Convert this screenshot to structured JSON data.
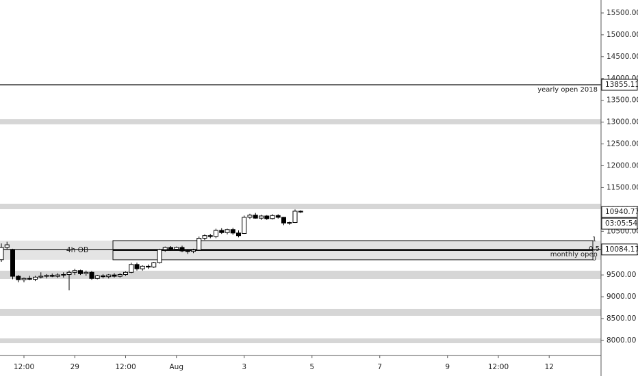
{
  "chart_data": {
    "type": "candlestick",
    "categories": [
      null,
      null,
      null,
      null,
      "12:00",
      null,
      null,
      null,
      null,
      null,
      null,
      null,
      null,
      "29",
      null,
      null,
      null,
      null,
      null,
      null,
      null,
      null,
      "12:00",
      null,
      null,
      null,
      null,
      null,
      null,
      null,
      null,
      "Aug",
      null,
      null,
      null,
      null,
      null,
      null,
      null,
      null,
      null,
      null,
      null,
      "3",
      null,
      null,
      null,
      null,
      null,
      null,
      null,
      null,
      null,
      null,
      null,
      "5",
      null,
      null,
      null,
      null,
      null,
      null,
      null,
      null,
      null,
      null,
      null,
      "7",
      null,
      null,
      null,
      null,
      null,
      null,
      null,
      null,
      null,
      null,
      null,
      "9",
      null,
      null,
      null,
      null,
      null,
      null,
      null,
      null,
      "12:00",
      null,
      null,
      null,
      null,
      null,
      null,
      null,
      null,
      "12",
      null,
      null,
      null,
      null,
      null,
      null,
      null
    ],
    "open": [
      9850,
      10130,
      10080,
      9470,
      9390,
      9420,
      9400,
      9450,
      9470,
      9490,
      9470,
      9500,
      9510,
      9560,
      9600,
      9530,
      9560,
      9420,
      9480,
      9460,
      9500,
      9470,
      9510,
      9560,
      9740,
      9640,
      9700,
      9680,
      9780,
      10080,
      10130,
      10090,
      10130,
      10050,
      10040,
      10070,
      10340,
      10400,
      10380,
      10520,
      10470,
      10540,
      10460,
      10450,
      10820,
      10870,
      10800,
      10850,
      10790,
      10860,
      10820,
      10690,
      10700,
      10960,
      null,
      null,
      null,
      null,
      null,
      null,
      null,
      null,
      null,
      null,
      null,
      null,
      null,
      null,
      null,
      null,
      null,
      null,
      null,
      null,
      null,
      null,
      null,
      null,
      null,
      null,
      null,
      null,
      null,
      null,
      null,
      null,
      null,
      null,
      null,
      null,
      null,
      null,
      null,
      null,
      null,
      null,
      null,
      null,
      null,
      null,
      null,
      null,
      null,
      null,
      null
    ],
    "high": [
      10220,
      10260,
      10100,
      9500,
      9440,
      9480,
      9480,
      9560,
      9520,
      9530,
      9540,
      9560,
      9600,
      9640,
      9620,
      9600,
      9590,
      9500,
      9520,
      9520,
      9540,
      9540,
      9580,
      9780,
      9780,
      9720,
      9740,
      9800,
      10100,
      10150,
      10160,
      10150,
      10170,
      10090,
      10100,
      10380,
      10430,
      10440,
      10560,
      10570,
      10560,
      10580,
      10520,
      10860,
      10900,
      10920,
      10880,
      10870,
      10890,
      10890,
      10830,
      10720,
      11000,
      10980,
      null,
      null,
      null,
      null,
      null,
      null,
      null,
      null,
      null,
      null,
      null,
      null,
      null,
      null,
      null,
      null,
      null,
      null,
      null,
      null,
      null,
      null,
      null,
      null,
      null,
      null,
      null,
      null,
      null,
      null,
      null,
      null,
      null,
      null,
      null,
      null,
      null,
      null,
      null,
      null,
      null,
      null,
      null,
      null,
      null,
      null,
      null,
      null,
      null,
      null,
      null
    ],
    "low": [
      9800,
      10080,
      9400,
      9330,
      9330,
      9380,
      9360,
      9420,
      9420,
      9450,
      9430,
      9440,
      9150,
      9500,
      9500,
      9480,
      9390,
      9400,
      9420,
      9420,
      9440,
      9440,
      9480,
      9540,
      9600,
      9600,
      9640,
      9660,
      9760,
      10030,
      10060,
      10070,
      10020,
      9980,
      10000,
      10050,
      10300,
      10340,
      10340,
      10440,
      10430,
      10420,
      10360,
      10440,
      10780,
      10790,
      10760,
      10760,
      10770,
      10790,
      10640,
      10650,
      10690,
      10920,
      null,
      null,
      null,
      null,
      null,
      null,
      null,
      null,
      null,
      null,
      null,
      null,
      null,
      null,
      null,
      null,
      null,
      null,
      null,
      null,
      null,
      null,
      null,
      null,
      null,
      null,
      null,
      null,
      null,
      null,
      null,
      null,
      null,
      null,
      null,
      null,
      null,
      null,
      null,
      null,
      null,
      null,
      null,
      null,
      null,
      null,
      null,
      null,
      null,
      null,
      null
    ],
    "close": [
      10130,
      10190,
      9470,
      9390,
      9420,
      9400,
      9450,
      9470,
      9490,
      9470,
      9500,
      9510,
      9560,
      9600,
      9530,
      9560,
      9420,
      9480,
      9460,
      9500,
      9470,
      9510,
      9560,
      9740,
      9640,
      9700,
      9680,
      9780,
      10080,
      10130,
      10090,
      10130,
      10050,
      10040,
      10070,
      10340,
      10400,
      10380,
      10520,
      10470,
      10540,
      10460,
      10400,
      10820,
      10870,
      10800,
      10850,
      10790,
      10860,
      10820,
      10690,
      10700,
      10960,
      10940.77,
      null,
      null,
      null,
      null,
      null,
      null,
      null,
      null,
      null,
      null,
      null,
      null,
      null,
      null,
      null,
      null,
      null,
      null,
      null,
      null,
      null,
      null,
      null,
      null,
      null,
      null,
      null,
      null,
      null,
      null,
      null,
      null,
      null,
      null,
      null,
      null,
      null,
      null,
      null,
      null,
      null,
      null,
      null,
      null,
      null,
      null,
      null,
      null,
      null,
      null,
      null
    ],
    "up_color": "#ffffff",
    "down_color": "#000000",
    "ylim": [
      7655,
      15797
    ],
    "yticks": [
      {
        "value": 8000,
        "label": "8000.00"
      },
      {
        "value": 8500,
        "label": "8500.00"
      },
      {
        "value": 9000,
        "label": "9000.00"
      },
      {
        "value": 9500,
        "label": "9500.00"
      },
      {
        "value": 10000,
        "label": "10000.00"
      },
      {
        "value": 10500,
        "label": "10500.00"
      },
      {
        "value": 11000,
        "label": "11000.00"
      },
      {
        "value": 11500,
        "label": "11500.00"
      },
      {
        "value": 12000,
        "label": "12000.00"
      },
      {
        "value": 12500,
        "label": "12500.00"
      },
      {
        "value": 13000,
        "label": "13000.00"
      },
      {
        "value": 13500,
        "label": "13500.00"
      },
      {
        "value": 14000,
        "label": "14000.00"
      },
      {
        "value": 14500,
        "label": "14500.00"
      },
      {
        "value": 15000,
        "label": "15000.00"
      },
      {
        "value": 15500,
        "label": "15500.00"
      }
    ],
    "zones": [
      [
        12950,
        13070
      ],
      [
        11006,
        11131
      ],
      [
        9409,
        9597
      ],
      [
        8564,
        8720
      ],
      [
        7937,
        8047
      ]
    ],
    "zone_color": "#d6d6d6",
    "levels": [
      {
        "name": "yearly open 2018",
        "value": 13855.11
      },
      {
        "name": "monthly open",
        "value": 10084.17
      }
    ],
    "order_block": {
      "name": "4h OB",
      "low": 9848,
      "high": 10286,
      "fib": [
        1,
        0.5,
        0
      ]
    },
    "countdown": "03:05:54"
  }
}
